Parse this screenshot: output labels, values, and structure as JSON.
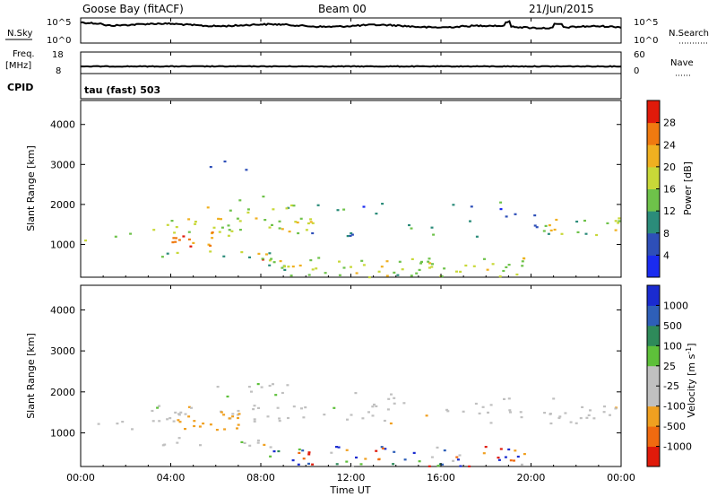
{
  "header": {
    "station": "Goose Bay (fitACF)",
    "beam": "Beam 00",
    "date": "21/Jun/2015"
  },
  "summary_panels": {
    "nsky_label": "N.Sky",
    "nsky_ticks": [
      "10^5",
      "10^0"
    ],
    "nsearch_label": "N.Search",
    "nsearch_ticks": [
      "10^5",
      "10^0"
    ],
    "freq_label": "Freq.",
    "freq_unit": "[MHz]",
    "freq_ticks": [
      "18",
      "8"
    ],
    "nave_label": "Nave",
    "nave_ticks": [
      "60",
      "0"
    ],
    "cpid_label": "CPID",
    "cpid_value": "tau (fast) 503"
  },
  "x_axis": {
    "label": "Time UT",
    "ticks": [
      "00:00",
      "04:00",
      "08:00",
      "12:00",
      "16:00",
      "20:00",
      "00:00"
    ]
  },
  "chart_data": [
    {
      "type": "heatmap",
      "name": "power",
      "xlabel": "Time UT",
      "ylabel": "Slant Range [km]",
      "x_range_hours": [
        0,
        24
      ],
      "ylim": [
        180,
        4600
      ],
      "yticks": [
        "1000",
        "2000",
        "3000",
        "4000"
      ],
      "colorbar": {
        "label": "Power [dB]",
        "ticks": [
          "4",
          "8",
          "12",
          "16",
          "20",
          "24",
          "28"
        ],
        "colors": [
          "#1a2bf0",
          "#2e4fb8",
          "#2b8c7a",
          "#6ec24a",
          "#c8d838",
          "#f0b020",
          "#f07a10",
          "#e01a0a"
        ],
        "range": [
          0,
          32
        ]
      },
      "echo_regions": [
        {
          "t0": 0.0,
          "t1": 0.45,
          "r0": 1050,
          "r1": 1300,
          "val": 0.45,
          "density": 0.35
        },
        {
          "t0": 1.2,
          "t1": 2.7,
          "r0": 1150,
          "r1": 1350,
          "val": 0.35,
          "density": 0.25
        },
        {
          "t0": 3.0,
          "t1": 10.4,
          "r0": 1300,
          "r1": 1700,
          "val": 0.55,
          "density": 0.55
        },
        {
          "t0": 4.0,
          "t1": 7.0,
          "r0": 950,
          "r1": 1350,
          "val": 0.75,
          "density": 0.6
        },
        {
          "t0": 3.2,
          "t1": 9.0,
          "r0": 700,
          "r1": 900,
          "val": 0.45,
          "density": 0.3
        },
        {
          "t0": 7.8,
          "t1": 8.6,
          "r0": 620,
          "r1": 850,
          "val": 0.8,
          "density": 0.7
        },
        {
          "t0": 5.5,
          "t1": 9.5,
          "r0": 1800,
          "r1": 2300,
          "val": 0.5,
          "density": 0.25
        },
        {
          "t0": 10.0,
          "t1": 21.0,
          "r0": 1200,
          "r1": 2100,
          "val": 0.25,
          "density": 0.12
        },
        {
          "t0": 8.0,
          "t1": 20.0,
          "r0": 200,
          "r1": 700,
          "val": 0.5,
          "density": 0.5
        },
        {
          "t0": 20.5,
          "t1": 24.0,
          "r0": 1250,
          "r1": 1700,
          "val": 0.5,
          "density": 0.55
        },
        {
          "t0": 5.0,
          "t1": 7.5,
          "r0": 2800,
          "r1": 3300,
          "val": 0.3,
          "density": 0.1
        }
      ]
    },
    {
      "type": "heatmap",
      "name": "velocity",
      "xlabel": "Time UT",
      "ylabel": "Slant Range [km]",
      "x_range_hours": [
        0,
        24
      ],
      "ylim": [
        180,
        4600
      ],
      "yticks": [
        "1000",
        "2000",
        "3000",
        "4000"
      ],
      "colorbar": {
        "label": "Velocity [m s^-1]",
        "ticks": [
          "1000",
          "500",
          "100",
          "25",
          "-25",
          "-100",
          "-500",
          "-1000"
        ],
        "colors": [
          "#1a2bd0",
          "#2e5fb8",
          "#2e8a5a",
          "#5ec03a",
          "#c0c0c0",
          "#c0c0c0",
          "#f0a020",
          "#f06a10",
          "#e01a0a"
        ],
        "range": [
          -1200,
          1200
        ]
      },
      "echo_regions": [
        {
          "t0": 3.0,
          "t1": 10.4,
          "r0": 1300,
          "r1": 1700,
          "val": 0.0,
          "density": 0.55
        },
        {
          "t0": 4.0,
          "t1": 7.0,
          "r0": 1050,
          "r1": 1500,
          "val": -0.3,
          "density": 0.6
        },
        {
          "t0": 3.2,
          "t1": 9.0,
          "r0": 700,
          "r1": 900,
          "val": 0.0,
          "density": 0.35
        },
        {
          "t0": 7.8,
          "t1": 8.6,
          "r0": 620,
          "r1": 850,
          "val": 0.0,
          "density": 0.7
        },
        {
          "t0": 5.5,
          "t1": 9.5,
          "r0": 1800,
          "r1": 2300,
          "val": 0.05,
          "density": 0.25
        },
        {
          "t0": 10.0,
          "t1": 21.0,
          "r0": 1250,
          "r1": 2000,
          "val": 0.0,
          "density": 0.2
        },
        {
          "t0": 8.0,
          "t1": 20.0,
          "r0": 200,
          "r1": 700,
          "val": 0.9,
          "density": 0.45
        },
        {
          "t0": 20.5,
          "t1": 24.0,
          "r0": 1250,
          "r1": 1700,
          "val": 0.0,
          "density": 0.55
        },
        {
          "t0": 0.0,
          "t1": 2.7,
          "r0": 1100,
          "r1": 1400,
          "val": 0.0,
          "density": 0.2
        }
      ]
    }
  ]
}
